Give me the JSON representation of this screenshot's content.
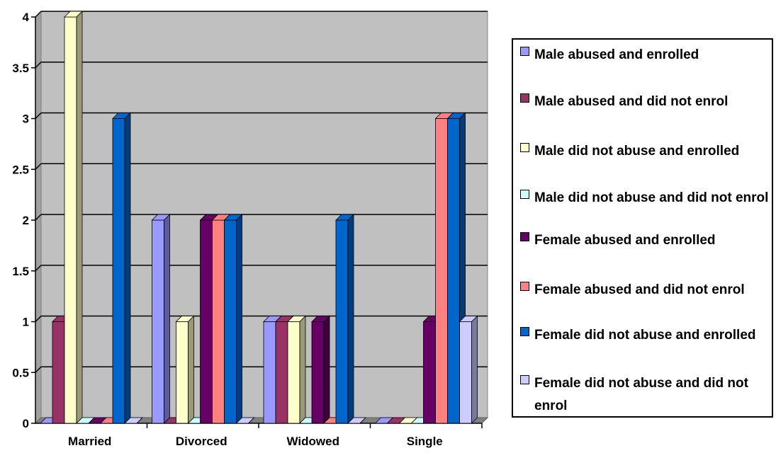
{
  "chart_data": {
    "type": "bar",
    "categories": [
      "Married",
      "Divorced",
      "Widowed",
      "Single"
    ],
    "ylim": [
      0,
      4
    ],
    "yticks": [
      "0",
      "0.5",
      "1",
      "1.5",
      "2",
      "2.5",
      "3",
      "3.5",
      "4"
    ],
    "grid": true,
    "legend_position": "right",
    "series": [
      {
        "name": "Male abused and enrolled",
        "color": "#9999ff",
        "values": [
          0,
          2,
          1,
          0
        ]
      },
      {
        "name": "Male abused and did not enrol",
        "color": "#993366",
        "values": [
          1,
          0,
          1,
          0
        ]
      },
      {
        "name": "Male did not abuse and enrolled",
        "color": "#ffffcc",
        "values": [
          4,
          1,
          1,
          0
        ]
      },
      {
        "name": "Male did not abuse and did not enrol",
        "color": "#ccffff",
        "values": [
          0,
          0,
          0,
          0
        ]
      },
      {
        "name": "Female abused and enrolled",
        "color": "#660066",
        "values": [
          0,
          2,
          1,
          1
        ]
      },
      {
        "name": "Female abused and did not enrol",
        "color": "#ff8080",
        "values": [
          0,
          2,
          0,
          3
        ]
      },
      {
        "name": "Female did not abuse and enrolled",
        "color": "#0066cc",
        "values": [
          3,
          2,
          2,
          3
        ]
      },
      {
        "name": "Female did not abuse and did not enrol",
        "color": "#ccccff",
        "values": [
          0,
          0,
          0,
          1
        ]
      }
    ],
    "plot_background": "#c0c0c0"
  }
}
